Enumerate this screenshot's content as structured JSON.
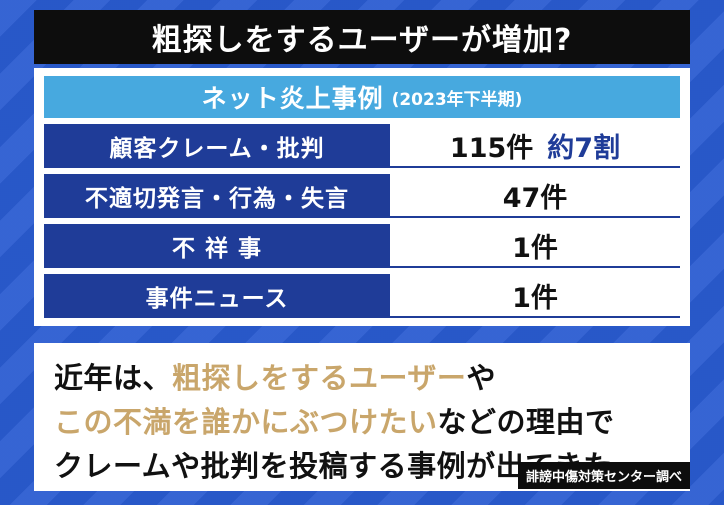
{
  "title": "粗探しをするユーザーが増加?",
  "table": {
    "header": "ネット炎上事例",
    "period": "(2023年下半期)",
    "rows": [
      {
        "label": "顧客クレーム・批判",
        "value": "115件",
        "extra": "約7割"
      },
      {
        "label": "不適切発言・行為・失言",
        "value": "47件",
        "extra": ""
      },
      {
        "label": "不 祥 事",
        "value": "1件",
        "extra": ""
      },
      {
        "label": "事件ニュース",
        "value": "1件",
        "extra": ""
      }
    ]
  },
  "note": {
    "line1_a": "近年は、",
    "line1_b": "粗探しをするユーザー",
    "line1_c": "や",
    "line2_a": "この不満を誰かにぶつけたい",
    "line2_b": "などの理由で",
    "line3": "クレームや批判を投稿する事例が出てきた"
  },
  "source": "誹謗中傷対策センター調べ",
  "colors": {
    "title_bg": "#0d0d0d",
    "header_band": "#47a9df",
    "row_label_bg": "#1f3c98",
    "highlight_text": "#c9a66b",
    "accent_text": "#1f3c98"
  }
}
